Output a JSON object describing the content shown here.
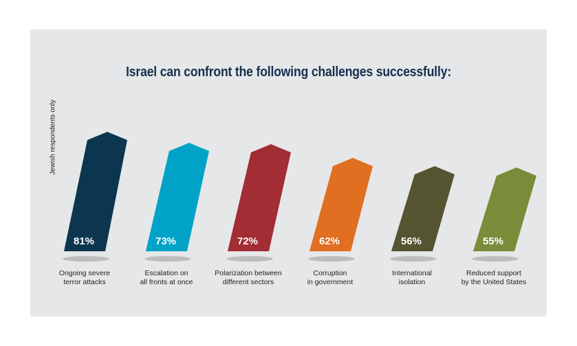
{
  "chart_data": {
    "type": "bar",
    "title": "Israel can confront the following challenges successfully:",
    "side_note": "Jewish respondents only",
    "categories": [
      [
        "Ongoing severe",
        "terror attacks"
      ],
      [
        "Escalation on",
        "all fronts at once"
      ],
      [
        "Polarization between",
        "different sectors"
      ],
      [
        "Corruption",
        "in government"
      ],
      [
        "International",
        "isolation"
      ],
      [
        "Reduced support",
        "by the United States"
      ]
    ],
    "values": [
      81,
      73,
      72,
      62,
      56,
      55
    ],
    "value_labels": [
      "81%",
      "73%",
      "72%",
      "62%",
      "56%",
      "55%"
    ],
    "colors": [
      "#0c3650",
      "#00a3c7",
      "#a22d34",
      "#e06f21",
      "#545431",
      "#7a8b3a"
    ],
    "ylim": [
      0,
      100
    ],
    "grid": false,
    "legend": "none"
  }
}
